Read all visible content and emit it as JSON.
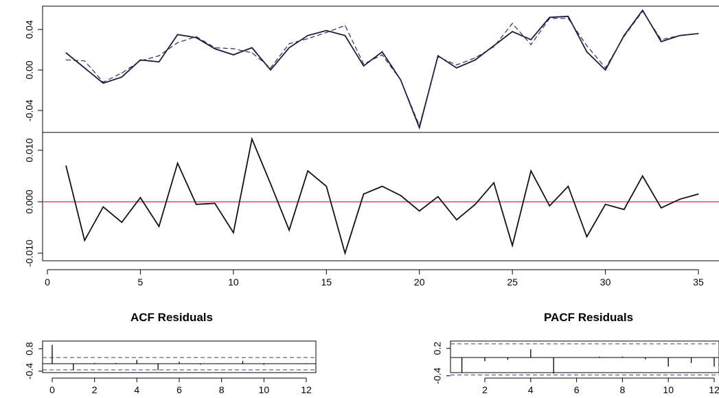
{
  "chart_data": [
    {
      "type": "line",
      "title": "",
      "xlabel": "",
      "ylabel": "",
      "ylim": [
        -0.058,
        0.064
      ],
      "yticks": [
        "0.04",
        "0.00",
        "-0.04"
      ],
      "series": [
        {
          "style": "solid",
          "color": "#1a1a3a",
          "x": [
            1,
            2,
            3,
            4,
            5,
            6,
            7,
            8,
            9,
            10,
            11,
            12,
            13,
            14,
            15,
            16,
            17,
            18,
            19,
            20,
            21,
            22,
            23,
            24,
            25,
            26,
            27,
            28,
            29,
            30,
            31,
            32,
            33,
            34,
            35
          ],
          "values": [
            0.017,
            0.002,
            -0.013,
            -0.007,
            0.01,
            0.008,
            0.035,
            0.032,
            0.021,
            0.015,
            0.022,
            0.0,
            0.022,
            0.034,
            0.039,
            0.034,
            0.004,
            0.018,
            -0.01,
            -0.057,
            0.014,
            0.002,
            0.01,
            0.024,
            0.038,
            0.03,
            0.052,
            0.053,
            0.018,
            0.0,
            0.034,
            0.059,
            0.028,
            0.034,
            0.036
          ]
        },
        {
          "style": "dashed",
          "color": "#2a2a5a",
          "x": [
            1,
            2,
            3,
            4,
            5,
            6,
            7,
            8,
            9,
            10,
            11,
            12,
            13,
            14,
            15,
            16,
            17,
            18,
            19,
            20,
            21,
            22,
            23,
            24,
            25,
            26,
            27,
            28,
            29,
            30,
            31,
            32,
            33,
            34,
            35
          ],
          "values": [
            0.01,
            0.009,
            -0.012,
            -0.003,
            0.009,
            0.014,
            0.027,
            0.033,
            0.022,
            0.021,
            0.017,
            0.002,
            0.026,
            0.031,
            0.037,
            0.044,
            0.006,
            0.015,
            -0.01,
            -0.055,
            0.013,
            0.005,
            0.012,
            0.023,
            0.046,
            0.025,
            0.051,
            0.051,
            0.024,
            0.002,
            0.033,
            0.058,
            0.03,
            0.034,
            0.036
          ]
        }
      ]
    },
    {
      "type": "line",
      "title": "",
      "xlabel": "",
      "ylabel": "",
      "xlim": [
        0,
        36
      ],
      "ylim": [
        -0.0105,
        0.0127
      ],
      "xticks": [
        "0",
        "5",
        "10",
        "15",
        "20",
        "25",
        "30",
        "35"
      ],
      "yticks": [
        "0.010",
        "0.000",
        "-0.010"
      ],
      "reference_line": {
        "y": 0,
        "color": "#e03030"
      },
      "series": [
        {
          "style": "solid",
          "color": "#111111",
          "x": [
            1,
            2,
            3,
            4,
            5,
            6,
            7,
            8,
            9,
            10,
            11,
            12,
            13,
            14,
            15,
            16,
            17,
            18,
            19,
            20,
            21,
            22,
            23,
            24,
            25,
            26,
            27,
            28,
            29,
            30,
            31,
            32,
            33,
            34,
            35
          ],
          "values": [
            0.007,
            -0.0075,
            -0.001,
            -0.004,
            0.0008,
            -0.0048,
            0.0075,
            -0.0005,
            -0.0003,
            -0.006,
            0.0122,
            0.0035,
            -0.0055,
            0.006,
            0.003,
            -0.01,
            0.0015,
            0.003,
            0.0012,
            -0.0018,
            0.001,
            -0.0035,
            -0.0005,
            0.0037,
            -0.0085,
            0.006,
            -0.0008,
            0.003,
            -0.0068,
            -0.0005,
            -0.0015,
            0.005,
            -0.0012,
            0.0005,
            0.0015
          ]
        }
      ]
    },
    {
      "type": "bar",
      "title": "ACF Residuals",
      "xlim": [
        -0.5,
        12.5
      ],
      "ylim": [
        -0.6,
        1.05
      ],
      "xticks": [
        "0",
        "2",
        "4",
        "6",
        "8",
        "10",
        "12"
      ],
      "yticks": [
        "0.8",
        "-0.4"
      ],
      "confidence_bounds": [
        0.33,
        -0.33
      ],
      "lags": [
        0,
        1,
        2,
        3,
        4,
        5,
        6,
        7,
        8,
        9,
        10,
        11,
        12
      ],
      "values": [
        1.0,
        -0.32,
        0.04,
        0.04,
        0.2,
        -0.35,
        0.1,
        -0.05,
        0.02,
        0.15,
        -0.06,
        0.02,
        0.03
      ]
    },
    {
      "type": "bar",
      "title": "PACF Residuals",
      "xlim": [
        0.4,
        12.4
      ],
      "ylim": [
        -0.48,
        0.33
      ],
      "xticks": [
        "2",
        "4",
        "6",
        "8",
        "10",
        "12"
      ],
      "yticks": [
        "0.2",
        "-0.4"
      ],
      "confidence_bounds": [
        0.3,
        -0.38
      ],
      "lags": [
        1,
        2,
        3,
        4,
        5,
        6,
        7,
        8,
        9,
        10,
        11,
        12
      ],
      "values": [
        -0.33,
        -0.08,
        -0.05,
        0.18,
        -0.35,
        0.0,
        0.02,
        0.02,
        -0.04,
        -0.2,
        -0.12,
        -0.2
      ]
    }
  ]
}
